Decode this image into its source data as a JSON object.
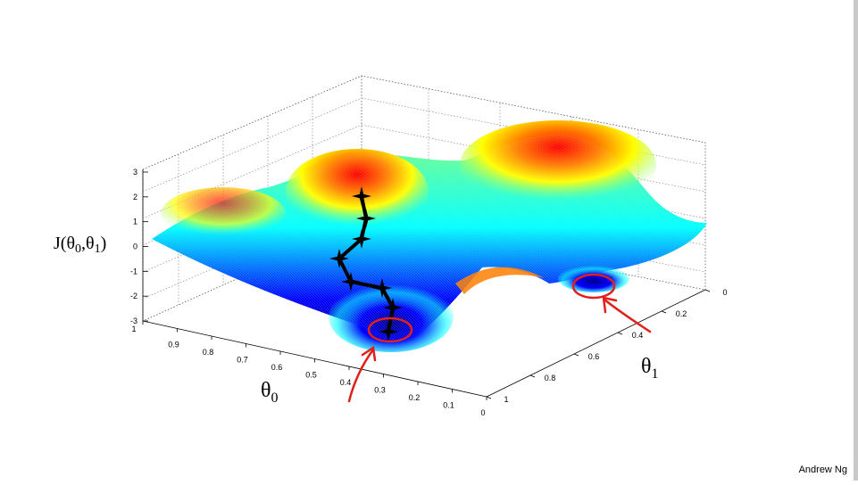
{
  "plot": {
    "z_label": {
      "main": "J(θ",
      "sub1": "0",
      "sep": ",θ",
      "sub2": "1",
      "close": ")"
    },
    "x_label": {
      "main": "θ",
      "sub": "0"
    },
    "y_label": {
      "main": "θ",
      "sub": "1"
    },
    "z_ticks": [
      "3",
      "2",
      "1",
      "0",
      "-1",
      "-2",
      "-3"
    ],
    "theta0_ticks": [
      "1",
      "0.9",
      "0.8",
      "0.7",
      "0.6",
      "0.5",
      "0.4",
      "0.3",
      "0.2",
      "0.1",
      "0"
    ],
    "theta1_ticks": [
      "0",
      "0.2",
      "0.4",
      "0.6",
      "0.8",
      "1"
    ],
    "colormap": [
      "#00008f",
      "#0000ff",
      "#00ffff",
      "#7fff7f",
      "#ffff00",
      "#ff7f00",
      "#ff0000",
      "#800000"
    ],
    "path_color": "#000000",
    "annotation_color": "#e0201a"
  },
  "footer": {
    "credit": "Andrew Ng"
  }
}
